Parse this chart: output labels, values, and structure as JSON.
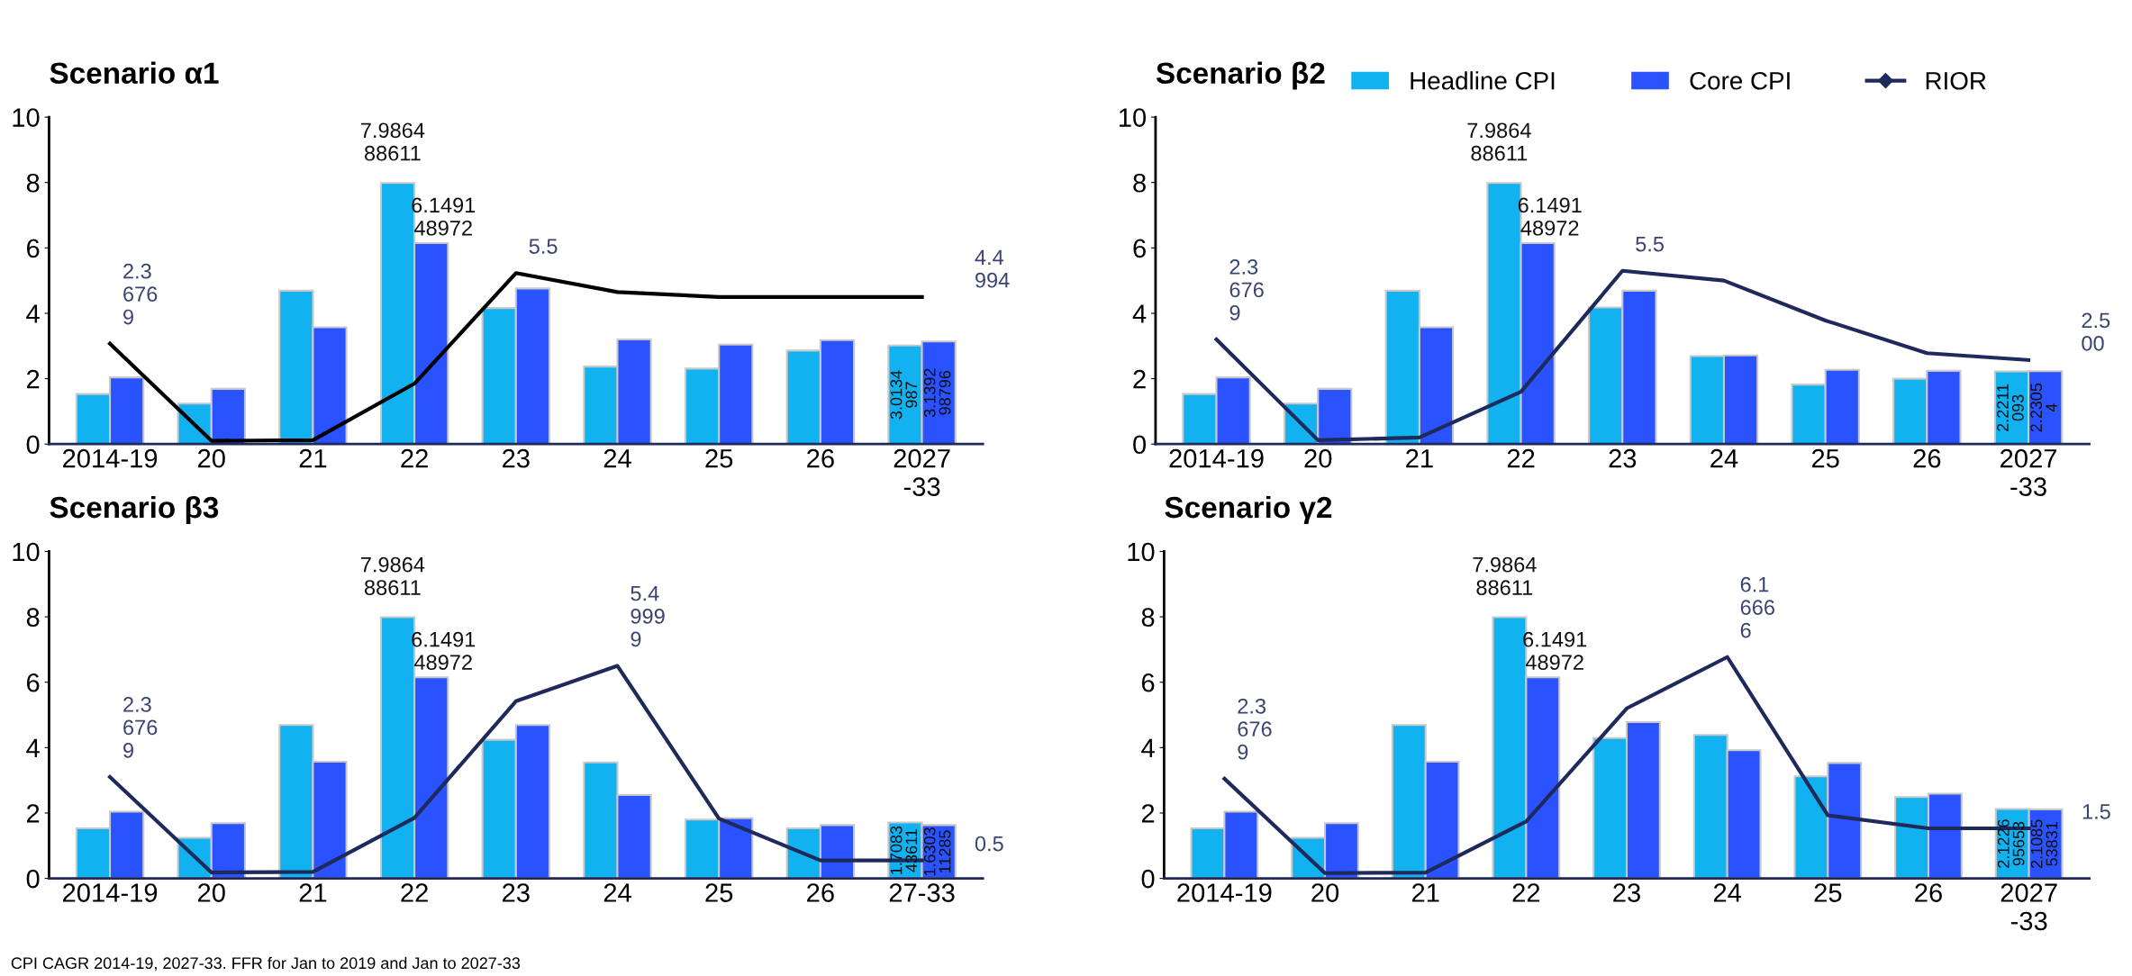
{
  "chart_data": [
    {
      "type": "bar",
      "title": "Scenario α1",
      "categories": [
        "2014-19",
        "20",
        "21",
        "22",
        "23",
        "24",
        "25",
        "26",
        "2027-33"
      ],
      "ylim": [
        0,
        10
      ],
      "yticks": [
        0,
        2,
        4,
        6,
        8,
        10
      ],
      "grid": false,
      "legend": false,
      "series": [
        {
          "color": "#12b1f0",
          "values": [
            1.53,
            1.24,
            4.69,
            7.986488611,
            4.16,
            2.37,
            2.31,
            2.86,
            3.0134987
          ],
          "value_labels": [
            null,
            null,
            null,
            "7.986488611",
            null,
            null,
            null,
            null,
            "3.0134987"
          ]
        },
        {
          "color": "#2a52fe",
          "values": [
            2.04,
            1.69,
            3.57,
            6.149148972,
            4.76,
            3.2,
            3.04,
            3.18,
            3.139298796
          ],
          "value_labels": [
            null,
            null,
            null,
            "6.149148972",
            null,
            null,
            null,
            null,
            "3.139298796"
          ]
        },
        {
          "type": "line",
          "color": "#000000",
          "values": [
            3.07,
            0.1,
            0.12,
            1.85,
            5.23,
            4.65,
            4.5,
            4.5,
            4.5
          ]
        }
      ],
      "annotations": [
        {
          "text": "2.36769",
          "x": "2014-19",
          "y": 3.07
        },
        {
          "text": "5.5",
          "x": "23",
          "y": 5.23
        },
        {
          "text": "4.4994",
          "x": "2027-33",
          "y": 4.5
        }
      ]
    },
    {
      "type": "bar",
      "title": "Scenario β2",
      "categories": [
        "2014-19",
        "20",
        "21",
        "22",
        "23",
        "24",
        "25",
        "26",
        "2027-33"
      ],
      "ylim": [
        0,
        10
      ],
      "yticks": [
        0,
        2,
        4,
        6,
        8,
        10
      ],
      "grid": false,
      "legend": "top",
      "series": [
        {
          "name": "Headline CPI",
          "color": "#12b1f0",
          "values": [
            1.53,
            1.24,
            4.69,
            7.986488611,
            4.18,
            2.69,
            1.82,
            2.0,
            2.2211093
          ],
          "value_labels": [
            null,
            null,
            null,
            "7.986488611",
            null,
            null,
            null,
            null,
            "2.2211093"
          ]
        },
        {
          "name": "Core CPI",
          "color": "#2a52fe",
          "values": [
            2.04,
            1.69,
            3.57,
            6.149148972,
            4.69,
            2.71,
            2.27,
            2.24,
            2.23054
          ],
          "value_labels": [
            null,
            null,
            null,
            "6.149148972",
            null,
            null,
            null,
            null,
            "2.23054"
          ]
        },
        {
          "name": "RIOR",
          "type": "line",
          "color": "#1f2a5c",
          "values": [
            3.2,
            0.12,
            0.2,
            1.6,
            5.3,
            5.0,
            3.78,
            2.78,
            2.57
          ]
        }
      ],
      "annotations": [
        {
          "text": "2.36769",
          "x": "2014-19",
          "y": 3.2
        },
        {
          "text": "5.5",
          "x": "23",
          "y": 5.3
        },
        {
          "text": "2.500",
          "x": "2027-33",
          "y": 2.57
        }
      ]
    },
    {
      "type": "bar",
      "title": "Scenario β3",
      "categories": [
        "2014-19",
        "20",
        "21",
        "22",
        "23",
        "24",
        "25",
        "26",
        "27-33"
      ],
      "ylim": [
        0,
        10
      ],
      "yticks": [
        0,
        2,
        4,
        6,
        8,
        10
      ],
      "grid": false,
      "legend": false,
      "series": [
        {
          "color": "#12b1f0",
          "values": [
            1.53,
            1.24,
            4.69,
            7.986488611,
            4.24,
            3.55,
            1.8,
            1.53,
            1.708343611
          ],
          "value_labels": [
            null,
            null,
            null,
            "7.986488611",
            null,
            null,
            null,
            null,
            "1.708343611"
          ]
        },
        {
          "color": "#2a52fe",
          "values": [
            2.04,
            1.69,
            3.57,
            6.149148972,
            4.69,
            2.55,
            1.84,
            1.63,
            1.630311285
          ],
          "value_labels": [
            null,
            null,
            null,
            "6.149148972",
            null,
            null,
            null,
            null,
            "1.630311285"
          ]
        },
        {
          "type": "line",
          "color": "#1f2a5c",
          "values": [
            3.1,
            0.18,
            0.2,
            1.85,
            5.42,
            6.5,
            1.83,
            0.55,
            0.55
          ]
        }
      ],
      "annotations": [
        {
          "text": "2.36769",
          "x": "2014-19",
          "y": 3.1
        },
        {
          "text": "5.49999",
          "x": "24",
          "y": 6.5
        },
        {
          "text": "0.5",
          "x": "27-33",
          "y": 0.55
        },
        "CPI CAGR 2014-19, 2027-33. FFR for Jan to 2019 and Jan to 2027-33"
      ]
    },
    {
      "type": "bar",
      "title": "Scenario γ2",
      "categories": [
        "2014-19",
        "20",
        "21",
        "22",
        "23",
        "24",
        "25",
        "26",
        "2027-33"
      ],
      "ylim": [
        0,
        10
      ],
      "yticks": [
        0,
        2,
        4,
        6,
        8,
        10
      ],
      "grid": false,
      "legend": false,
      "series": [
        {
          "color": "#12b1f0",
          "values": [
            1.53,
            1.24,
            4.69,
            7.986488611,
            4.29,
            4.39,
            3.12,
            2.49,
            2.122695653
          ],
          "value_labels": [
            null,
            null,
            null,
            "7.986488611",
            null,
            null,
            null,
            null,
            "2.122695653"
          ]
        },
        {
          "color": "#2a52fe",
          "values": [
            2.04,
            1.69,
            3.57,
            6.149148972,
            4.78,
            3.92,
            3.53,
            2.59,
            2.108553831
          ],
          "value_labels": [
            null,
            null,
            null,
            "6.149148972",
            null,
            null,
            null,
            null,
            "2.108553831"
          ]
        },
        {
          "type": "line",
          "color": "#1f2a5c",
          "values": [
            3.05,
            0.16,
            0.18,
            1.74,
            5.2,
            6.77,
            1.93,
            1.53,
            1.53
          ]
        }
      ],
      "annotations": [
        {
          "text": "2.36769",
          "x": "2014-19",
          "y": 3.05
        },
        {
          "text": "6.16666",
          "x": "24",
          "y": 6.77
        },
        {
          "text": "1.5",
          "x": "2027-33",
          "y": 1.53
        }
      ]
    }
  ]
}
